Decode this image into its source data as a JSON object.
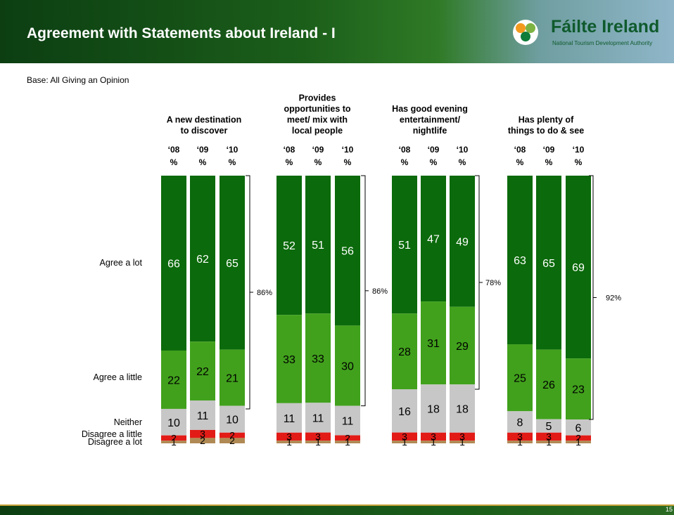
{
  "header": {
    "title": "Agreement with Statements about Ireland - I"
  },
  "logo": {
    "name": "Fáilte Ireland",
    "tagline": "National Tourism Development Authority"
  },
  "base_note": "Base: All Giving an Opinion",
  "page_number": "15",
  "colors": {
    "agree_a_lot": "#0b6a0b",
    "agree_a_little": "#41a11c",
    "neither": "#c7c7c7",
    "disagree_a_little": "#e21b17",
    "disagree_a_lot": "#b08a54"
  },
  "chart_data": {
    "type": "bar",
    "stacked": true,
    "percent_axis": "%",
    "row_labels": [
      "Agree a lot",
      "Agree a little",
      "Neither",
      "Disagree a little",
      "Disagree a lot"
    ],
    "groups": [
      {
        "title": [
          "A new destination",
          "to discover"
        ],
        "net_label": "86%",
        "bars": [
          {
            "year": "‘08",
            "values": [
              66,
              22,
              10,
              2,
              1
            ]
          },
          {
            "year": "‘09",
            "values": [
              62,
              22,
              11,
              3,
              2
            ]
          },
          {
            "year": "‘10",
            "values": [
              65,
              21,
              10,
              2,
              2
            ]
          }
        ]
      },
      {
        "title": [
          "Provides",
          "opportunities to",
          "meet/ mix with",
          "local people"
        ],
        "net_label": "86%",
        "bars": [
          {
            "year": "‘08",
            "values": [
              52,
              33,
              11,
              3,
              1
            ]
          },
          {
            "year": "‘09",
            "values": [
              51,
              33,
              11,
              3,
              1
            ]
          },
          {
            "year": "‘10",
            "values": [
              56,
              30,
              11,
              2,
              1
            ]
          }
        ]
      },
      {
        "title": [
          "Has good evening",
          "entertainment/",
          "nightlife"
        ],
        "net_label": "78%",
        "bars": [
          {
            "year": "‘08",
            "values": [
              51,
              28,
              16,
              3,
              1
            ]
          },
          {
            "year": "‘09",
            "values": [
              47,
              31,
              18,
              3,
              1
            ]
          },
          {
            "year": "‘10",
            "values": [
              49,
              29,
              18,
              3,
              1
            ]
          }
        ]
      },
      {
        "title": [
          "Has plenty of",
          "things to do & see"
        ],
        "net_label": "92%",
        "bars": [
          {
            "year": "‘08",
            "values": [
              63,
              25,
              8,
              3,
              1
            ]
          },
          {
            "year": "‘09",
            "values": [
              65,
              26,
              5,
              3,
              1
            ]
          },
          {
            "year": "‘10",
            "values": [
              69,
              23,
              6,
              2,
              1
            ]
          }
        ]
      }
    ]
  }
}
